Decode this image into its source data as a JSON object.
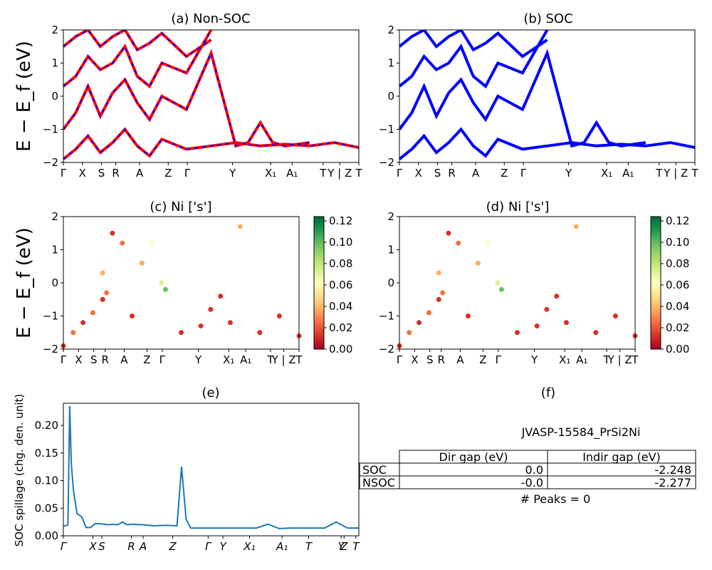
{
  "chart_data": [
    {
      "type": "line",
      "panel": "a",
      "title": "(a) Non-SOC",
      "ylabel": "E − E_f (eV)",
      "ylim": [
        -2,
        2
      ],
      "yticks": [
        "2",
        "1",
        "0",
        "−1",
        "−2"
      ],
      "xticks": [
        "Γ",
        "X",
        "S",
        "R",
        "A",
        "Z",
        "Γ",
        "Y",
        "X₁",
        "A₁",
        "T",
        "Y | Z",
        "T"
      ],
      "series": [
        {
          "name": "",
          "color": "#ff0000",
          "dash_color": "#0000ff",
          "style": "dashed-overlay",
          "points": [
            [
              0,
              -1.9
            ],
            [
              0.5,
              -1.6
            ],
            [
              1,
              -1.2
            ],
            [
              1.5,
              -1.7
            ],
            [
              2,
              -1.4
            ],
            [
              2.5,
              -1.0
            ],
            [
              3,
              -1.5
            ],
            [
              3.5,
              -1.8
            ],
            [
              4,
              -1.3
            ],
            [
              5,
              -1.6
            ],
            [
              6,
              -1.5
            ],
            [
              7,
              -1.4
            ],
            [
              8,
              -1.5
            ],
            [
              9,
              -1.45
            ],
            [
              10,
              -1.5
            ],
            [
              11,
              -1.4
            ],
            [
              12,
              -1.55
            ]
          ]
        },
        {
          "name": "",
          "color": "#ff0000",
          "points": [
            [
              0,
              -1.0
            ],
            [
              0.5,
              -0.5
            ],
            [
              1,
              0.3
            ],
            [
              1.5,
              -0.6
            ],
            [
              2,
              0.1
            ],
            [
              2.5,
              0.5
            ],
            [
              3,
              -0.2
            ],
            [
              3.5,
              -0.7
            ],
            [
              4,
              0.0
            ],
            [
              5,
              -0.4
            ],
            [
              6,
              1.3
            ],
            [
              7,
              -1.5
            ],
            [
              7.5,
              -1.4
            ],
            [
              8,
              -0.8
            ],
            [
              8.5,
              -1.4
            ],
            [
              9,
              -1.5
            ],
            [
              10,
              -1.4
            ]
          ]
        },
        {
          "name": "",
          "color": "#ff0000",
          "points": [
            [
              0,
              0.3
            ],
            [
              0.5,
              0.6
            ],
            [
              1,
              1.2
            ],
            [
              1.5,
              0.8
            ],
            [
              2,
              1.0
            ],
            [
              2.5,
              1.5
            ],
            [
              3,
              0.6
            ],
            [
              3.5,
              0.3
            ],
            [
              4,
              1.0
            ],
            [
              5,
              0.7
            ],
            [
              6,
              2.0
            ]
          ]
        },
        {
          "name": "",
          "color": "#ff0000",
          "points": [
            [
              0,
              1.5
            ],
            [
              0.5,
              1.8
            ],
            [
              1,
              2.0
            ],
            [
              1.5,
              1.5
            ],
            [
              2,
              1.8
            ],
            [
              2.5,
              2.0
            ],
            [
              3,
              1.4
            ],
            [
              3.5,
              1.6
            ],
            [
              4,
              1.9
            ],
            [
              5,
              1.2
            ],
            [
              6,
              1.7
            ]
          ]
        }
      ]
    },
    {
      "type": "line",
      "panel": "b",
      "title": "(b) SOC",
      "ylim": [
        -2,
        2
      ],
      "yticks": [
        "2",
        "1",
        "0",
        "−1",
        "−2"
      ],
      "xticks": [
        "Γ",
        "X",
        "S",
        "R",
        "A",
        "Z",
        "Γ",
        "Y",
        "X₁",
        "A₁",
        "T",
        "Y | Z",
        "T"
      ],
      "series": [
        {
          "name": "",
          "color": "#0000ff",
          "points": [
            [
              0,
              -1.9
            ],
            [
              0.5,
              -1.6
            ],
            [
              1,
              -1.2
            ],
            [
              1.5,
              -1.7
            ],
            [
              2,
              -1.4
            ],
            [
              2.5,
              -1.0
            ],
            [
              3,
              -1.5
            ],
            [
              3.5,
              -1.8
            ],
            [
              4,
              -1.3
            ],
            [
              5,
              -1.6
            ],
            [
              6,
              -1.5
            ],
            [
              7,
              -1.4
            ],
            [
              8,
              -1.5
            ],
            [
              9,
              -1.45
            ],
            [
              10,
              -1.5
            ],
            [
              11,
              -1.4
            ],
            [
              12,
              -1.55
            ]
          ]
        },
        {
          "name": "",
          "color": "#0000ff",
          "points": [
            [
              0,
              -1.0
            ],
            [
              0.5,
              -0.5
            ],
            [
              1,
              0.3
            ],
            [
              1.5,
              -0.6
            ],
            [
              2,
              0.1
            ],
            [
              2.5,
              0.5
            ],
            [
              3,
              -0.2
            ],
            [
              3.5,
              -0.7
            ],
            [
              4,
              0.0
            ],
            [
              5,
              -0.4
            ],
            [
              6,
              1.3
            ],
            [
              7,
              -1.5
            ],
            [
              7.5,
              -1.4
            ],
            [
              8,
              -0.8
            ],
            [
              8.5,
              -1.4
            ],
            [
              9,
              -1.5
            ],
            [
              10,
              -1.4
            ]
          ]
        },
        {
          "name": "",
          "color": "#0000ff",
          "points": [
            [
              0,
              0.3
            ],
            [
              0.5,
              0.6
            ],
            [
              1,
              1.2
            ],
            [
              1.5,
              0.8
            ],
            [
              2,
              1.0
            ],
            [
              2.5,
              1.5
            ],
            [
              3,
              0.6
            ],
            [
              3.5,
              0.3
            ],
            [
              4,
              1.0
            ],
            [
              5,
              0.7
            ],
            [
              6,
              2.0
            ]
          ]
        },
        {
          "name": "",
          "color": "#0000ff",
          "points": [
            [
              0,
              1.5
            ],
            [
              0.5,
              1.8
            ],
            [
              1,
              2.0
            ],
            [
              1.5,
              1.5
            ],
            [
              2,
              1.8
            ],
            [
              2.5,
              2.0
            ],
            [
              3,
              1.4
            ],
            [
              3.5,
              1.6
            ],
            [
              4,
              1.9
            ],
            [
              5,
              1.2
            ],
            [
              6,
              1.7
            ]
          ]
        }
      ]
    },
    {
      "type": "scatter",
      "panel": "c",
      "title": "(c)  Ni ['s']",
      "ylabel": "E − E_f (eV)",
      "ylim": [
        -2,
        2
      ],
      "yticks": [
        "2",
        "1",
        "0",
        "−1",
        "−2"
      ],
      "xticks": [
        "Γ",
        "X",
        "S",
        "R",
        "A",
        "Z",
        "Γ",
        "Y",
        "X₁",
        "A₁",
        "T",
        "Y | Z",
        "T"
      ],
      "colorbar": {
        "ticks": [
          "0.12",
          "0.10",
          "0.08",
          "0.06",
          "0.04",
          "0.02",
          "0.00"
        ],
        "range": [
          0,
          0.12
        ],
        "colors": [
          "#a50026",
          "#d73027",
          "#f46d43",
          "#fdae61",
          "#fee08b",
          "#ffffbf",
          "#d9ef8b",
          "#a6d96a",
          "#66bd63",
          "#1a9850",
          "#006837"
        ]
      },
      "points": [
        [
          0,
          -1.9,
          0.01
        ],
        [
          0.5,
          -1.5,
          0.02
        ],
        [
          1,
          -1.2,
          0.01
        ],
        [
          1.5,
          -0.9,
          0.02
        ],
        [
          2,
          -0.5,
          0.01
        ],
        [
          2,
          0.3,
          0.03
        ],
        [
          2.2,
          -0.3,
          0.02
        ],
        [
          2.5,
          1.5,
          0.01
        ],
        [
          3,
          1.2,
          0.02
        ],
        [
          3.5,
          -1.0,
          0.01
        ],
        [
          4,
          0.6,
          0.04
        ],
        [
          4.5,
          1.2,
          0.06
        ],
        [
          5,
          0.0,
          0.07
        ],
        [
          5.2,
          -0.2,
          0.09
        ],
        [
          6,
          -1.5,
          0.01
        ],
        [
          7,
          -1.3,
          0.01
        ],
        [
          7.5,
          -0.8,
          0.01
        ],
        [
          8,
          -0.4,
          0.01
        ],
        [
          8.5,
          -1.2,
          0.01
        ],
        [
          9,
          1.7,
          0.03
        ],
        [
          10,
          -1.5,
          0.01
        ],
        [
          11,
          -1.0,
          0.01
        ],
        [
          12,
          -1.6,
          0.01
        ]
      ]
    },
    {
      "type": "scatter",
      "panel": "d",
      "title": "(d) Ni ['s']",
      "ylim": [
        -2,
        2
      ],
      "yticks": [
        "2",
        "1",
        "0",
        "−1",
        "−2"
      ],
      "xticks": [
        "Γ",
        "X",
        "S",
        "R",
        "A",
        "Z",
        "Γ",
        "Y",
        "X₁",
        "A₁",
        "T",
        "Y | Z",
        "T"
      ],
      "colorbar": {
        "ticks": [
          "0.12",
          "0.10",
          "0.08",
          "0.06",
          "0.04",
          "0.02",
          "0.00"
        ],
        "range": [
          0,
          0.12
        ],
        "colors": [
          "#a50026",
          "#d73027",
          "#f46d43",
          "#fdae61",
          "#fee08b",
          "#ffffbf",
          "#d9ef8b",
          "#a6d96a",
          "#66bd63",
          "#1a9850",
          "#006837"
        ]
      },
      "points": [
        [
          0,
          -1.9,
          0.01
        ],
        [
          0.5,
          -1.5,
          0.02
        ],
        [
          1,
          -1.2,
          0.01
        ],
        [
          1.5,
          -0.9,
          0.02
        ],
        [
          2,
          -0.5,
          0.01
        ],
        [
          2,
          0.3,
          0.03
        ],
        [
          2.2,
          -0.3,
          0.02
        ],
        [
          2.5,
          1.5,
          0.01
        ],
        [
          3,
          1.2,
          0.02
        ],
        [
          3.5,
          -1.0,
          0.01
        ],
        [
          4,
          0.6,
          0.04
        ],
        [
          4.5,
          1.2,
          0.06
        ],
        [
          5,
          0.0,
          0.07
        ],
        [
          5.2,
          -0.2,
          0.09
        ],
        [
          6,
          -1.5,
          0.01
        ],
        [
          7,
          -1.3,
          0.01
        ],
        [
          7.5,
          -0.8,
          0.01
        ],
        [
          8,
          -0.4,
          0.01
        ],
        [
          8.5,
          -1.2,
          0.01
        ],
        [
          9,
          1.7,
          0.03
        ],
        [
          10,
          -1.5,
          0.01
        ],
        [
          11,
          -1.0,
          0.01
        ],
        [
          12,
          -1.6,
          0.01
        ]
      ]
    },
    {
      "type": "line",
      "panel": "e",
      "title": "(e)",
      "ylabel": "SOC spillage (chg. den. unit)",
      "ylim": [
        0,
        0.24
      ],
      "yticks": [
        "0.20",
        "0.15",
        "0.10",
        "0.05",
        "0.00"
      ],
      "xticks": [
        "Γ",
        "X",
        "S",
        "R",
        "A",
        "Z",
        "Γ",
        "Y",
        "X₁",
        "A₁",
        "T",
        "Y",
        "Z",
        "T"
      ],
      "series": [
        {
          "name": "",
          "color": "#1f77b4",
          "x": [
            0,
            0.1,
            0.2,
            0.28,
            0.35,
            0.45,
            0.6,
            0.8,
            1.0,
            1.2,
            1.4,
            1.6,
            1.8,
            2.0,
            2.2,
            2.4,
            2.6,
            2.8,
            3.0,
            3.5,
            4.0,
            4.5,
            5.0,
            5.2,
            5.4,
            5.6,
            6.0,
            6.5,
            7.0,
            7.5,
            8.0,
            8.5,
            9.0,
            9.5,
            10.0,
            10.5,
            11.0,
            11.5,
            12.0,
            12.5,
            13.0
          ],
          "y": [
            0.018,
            0.018,
            0.02,
            0.235,
            0.13,
            0.08,
            0.04,
            0.035,
            0.015,
            0.015,
            0.022,
            0.022,
            0.021,
            0.02,
            0.021,
            0.02,
            0.025,
            0.02,
            0.021,
            0.02,
            0.018,
            0.019,
            0.018,
            0.125,
            0.03,
            0.014,
            0.014,
            0.014,
            0.014,
            0.014,
            0.014,
            0.014,
            0.021,
            0.013,
            0.014,
            0.014,
            0.014,
            0.014,
            0.025,
            0.014,
            0.014
          ]
        }
      ]
    },
    {
      "type": "table",
      "panel": "f",
      "title": "(f)",
      "subtitle": "JVASP-15584_PrSi2Ni",
      "columns": [
        "Dir gap (eV)",
        "Indir gap (eV)"
      ],
      "rows": [
        {
          "label": "SOC",
          "values": [
            "0.0",
            "-2.248"
          ]
        },
        {
          "label": "NSOC",
          "values": [
            "-0.0",
            "-2.277"
          ]
        }
      ],
      "footer": "# Peaks = 0"
    }
  ]
}
